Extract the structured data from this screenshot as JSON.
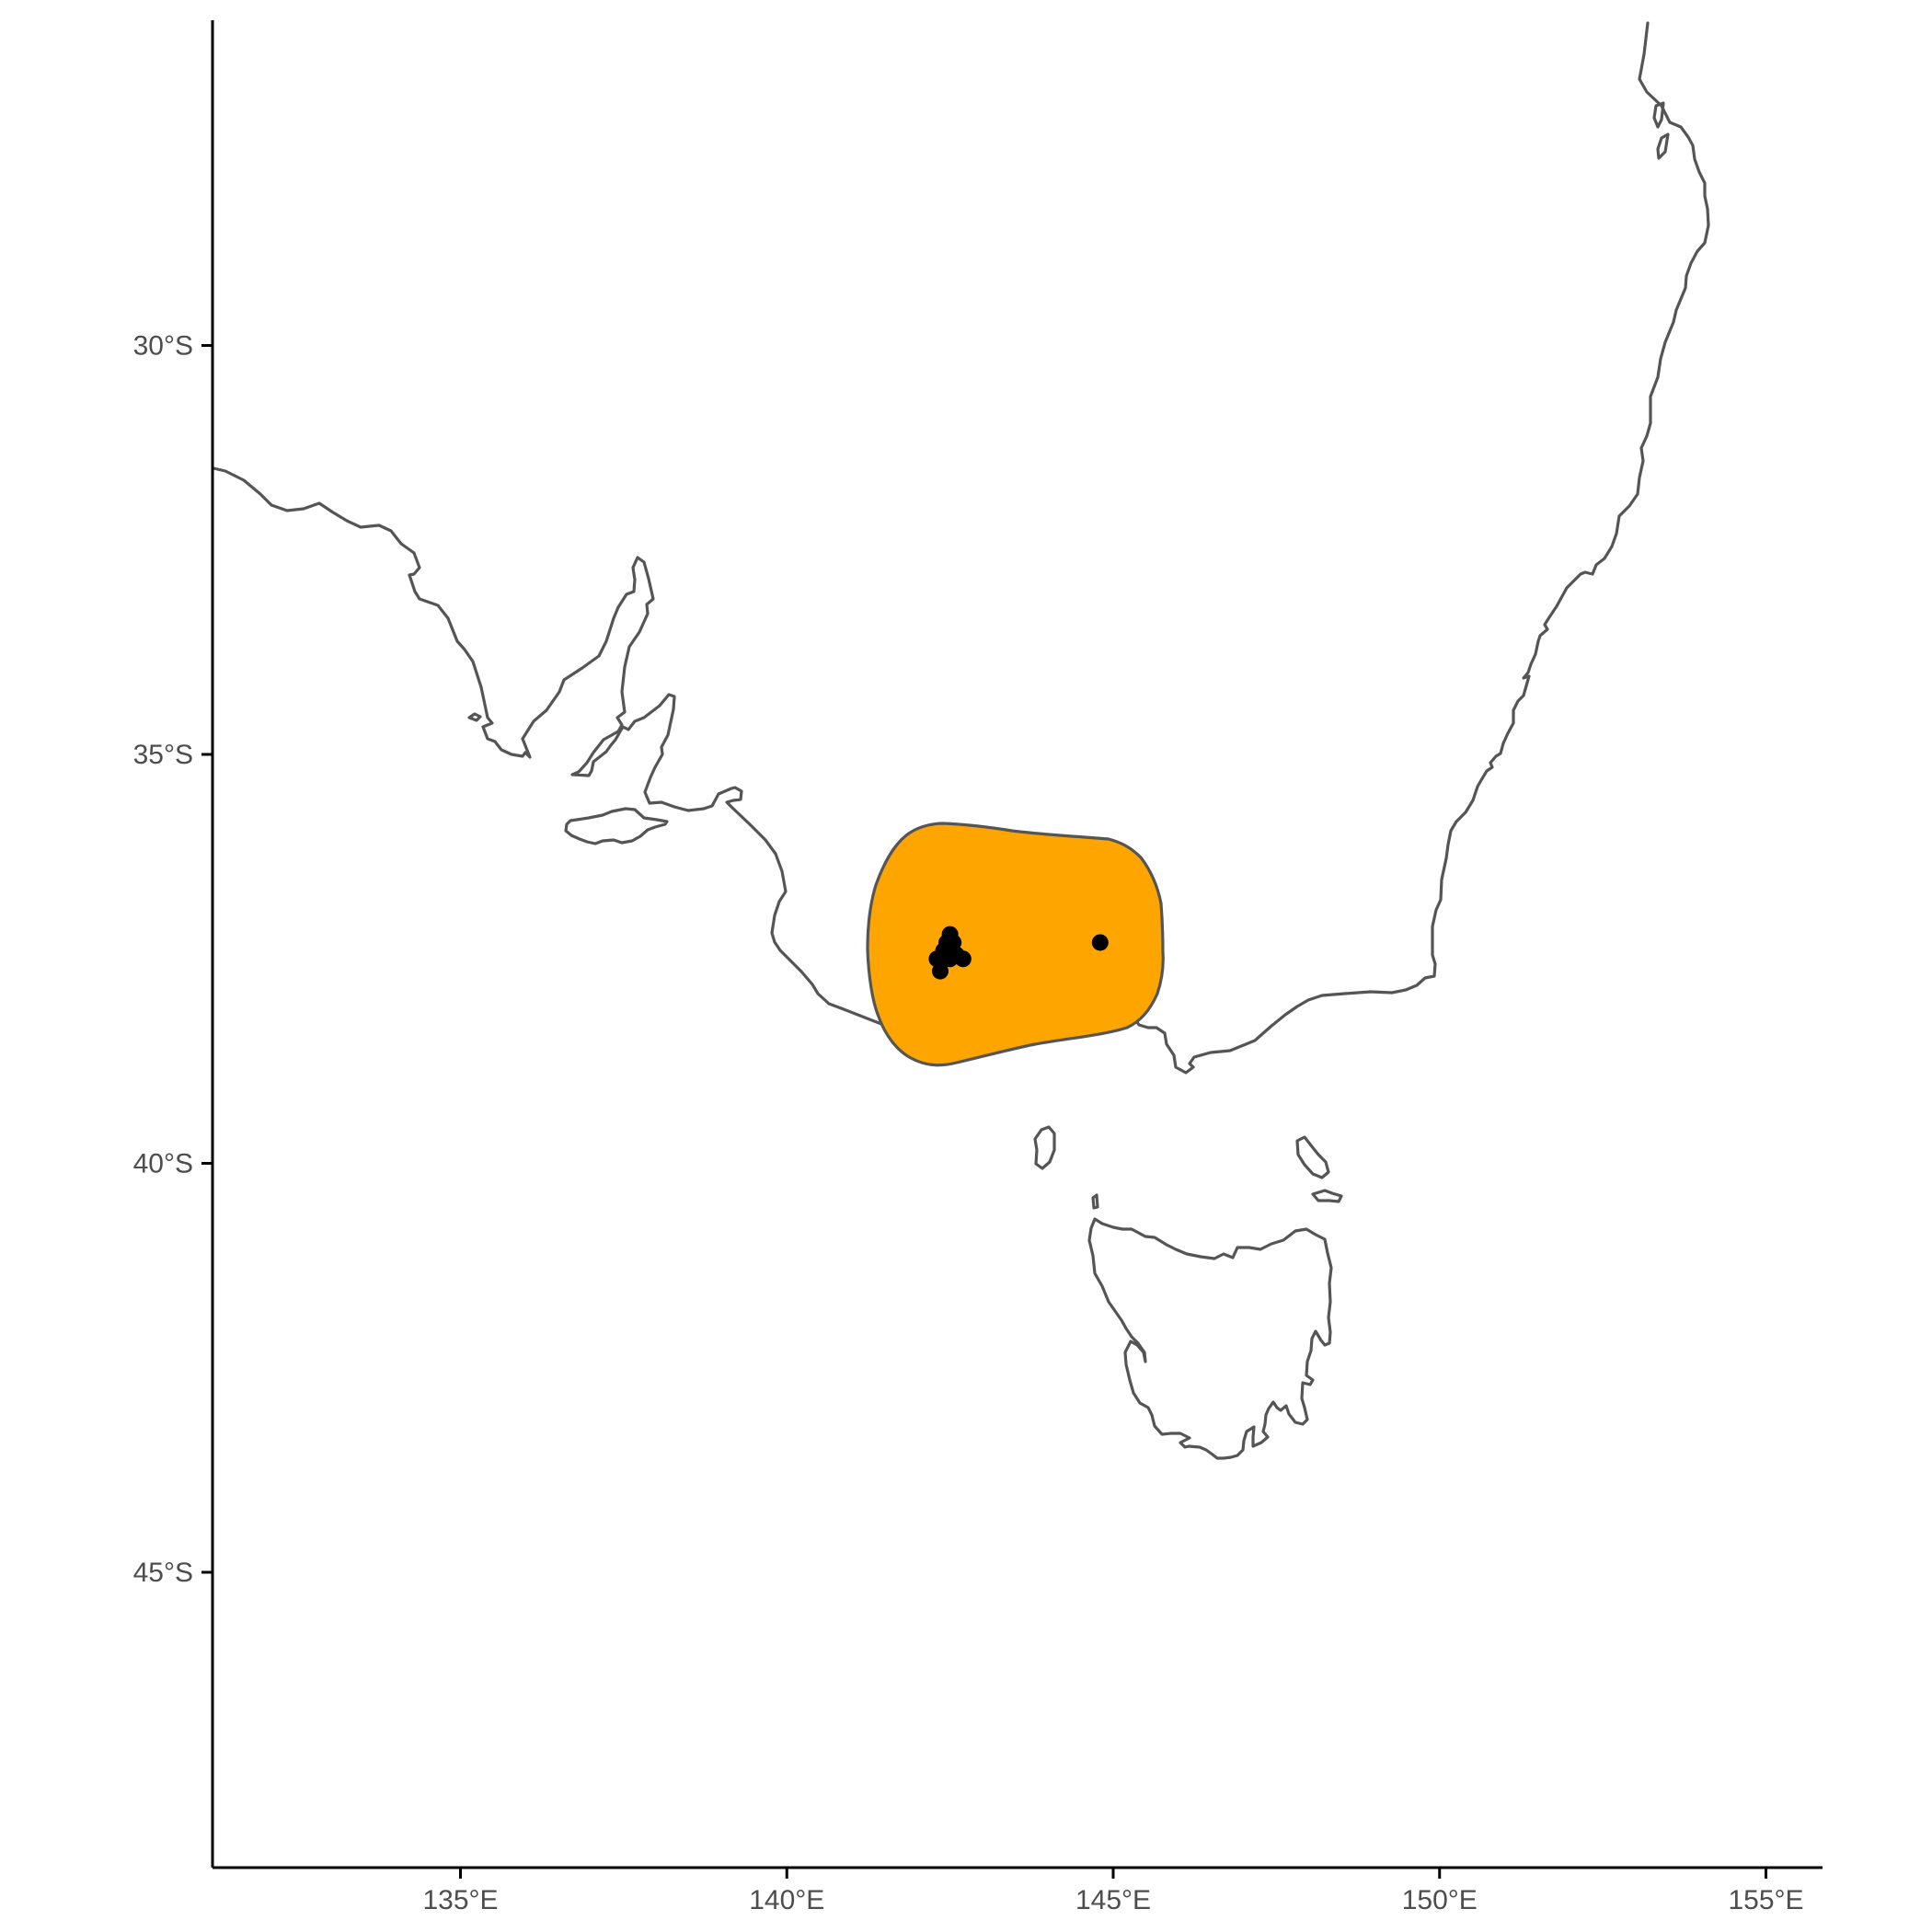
{
  "map": {
    "region": "South-eastern Australia and Tasmania",
    "x_axis": {
      "ticks": [
        {
          "value": 135,
          "label": "135°E"
        },
        {
          "value": 140,
          "label": "140°E"
        },
        {
          "value": 145,
          "label": "145°E"
        },
        {
          "value": 150,
          "label": "150°E"
        },
        {
          "value": 155,
          "label": "155°E"
        }
      ],
      "range": [
        131.2,
        155.8
      ]
    },
    "y_axis": {
      "ticks": [
        {
          "value": -30,
          "label": "30°S"
        },
        {
          "value": -35,
          "label": "35°S"
        },
        {
          "value": -40,
          "label": "40°S"
        },
        {
          "value": -45,
          "label": "45°S"
        }
      ],
      "range": [
        -48.7,
        -26.0
      ]
    },
    "grid": false,
    "colors": {
      "range_fill": "#FFA500",
      "outline": "#555555",
      "points": "#000000",
      "axis": "#000000",
      "tick_text": "#4d4d4d"
    },
    "occurrences": [
      {
        "lon": 142.5,
        "lat": -37.2
      },
      {
        "lon": 142.45,
        "lat": -37.3
      },
      {
        "lon": 142.55,
        "lat": -37.3
      },
      {
        "lon": 142.4,
        "lat": -37.4
      },
      {
        "lon": 142.6,
        "lat": -37.45
      },
      {
        "lon": 142.5,
        "lat": -37.5
      },
      {
        "lon": 142.7,
        "lat": -37.5
      },
      {
        "lon": 142.3,
        "lat": -37.5
      },
      {
        "lon": 142.35,
        "lat": -37.65
      },
      {
        "lon": 144.8,
        "lat": -37.3
      }
    ]
  }
}
